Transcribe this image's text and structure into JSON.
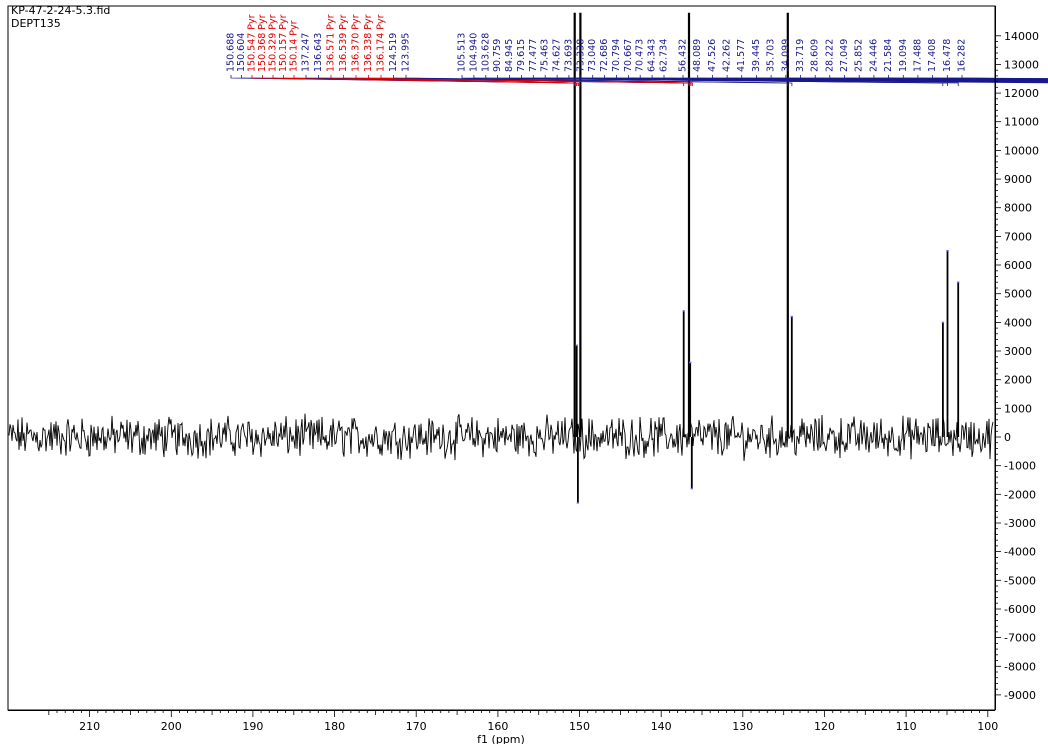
{
  "window": {
    "filename": "KP-47-2-24-5.3.fid",
    "experiment": "DEPT135"
  },
  "colors": {
    "spectrum": "#000000",
    "peak_label": "#1a1a8c",
    "solvent_label": "#e00000",
    "peak_tick": "#6a6aff"
  },
  "chart_data": {
    "type": "line",
    "title": "",
    "xlabel": "f1 (ppm)",
    "ylabel": "",
    "x_reversed": true,
    "xlim": [
      -17,
      220
    ],
    "ylim": [
      -9500,
      14800
    ],
    "x_ticks": [
      210,
      200,
      190,
      180,
      170,
      160,
      150,
      140,
      130,
      120,
      110,
      100,
      90,
      80,
      70,
      60,
      50,
      40,
      30,
      20,
      10,
      0,
      -10
    ],
    "y_ticks": [
      14000,
      13000,
      12000,
      11000,
      10000,
      9000,
      8000,
      7000,
      6000,
      5000,
      4000,
      3000,
      2000,
      1000,
      0,
      -1000,
      -2000,
      -3000,
      -4000,
      -5000,
      -6000,
      -7000,
      -8000,
      -9000
    ],
    "noise_amplitude": 850,
    "peaks": [
      {
        "x": 150.6,
        "y": 14800
      },
      {
        "x": 150.35,
        "y": 3200
      },
      {
        "x": 150.2,
        "y": -2300
      },
      {
        "x": 149.9,
        "y": 14800
      },
      {
        "x": 137.25,
        "y": 4400
      },
      {
        "x": 136.6,
        "y": 14800
      },
      {
        "x": 136.45,
        "y": 2600
      },
      {
        "x": 136.25,
        "y": -1800
      },
      {
        "x": 124.5,
        "y": 14800
      },
      {
        "x": 124.0,
        "y": 4200
      },
      {
        "x": 105.5,
        "y": 4000
      },
      {
        "x": 104.94,
        "y": 6500
      },
      {
        "x": 103.63,
        "y": 5400
      },
      {
        "x": 90.76,
        "y": 4500
      },
      {
        "x": 84.95,
        "y": 2800
      },
      {
        "x": 79.62,
        "y": 4700
      },
      {
        "x": 77.48,
        "y": 7500
      },
      {
        "x": 75.46,
        "y": 5700
      },
      {
        "x": 74.63,
        "y": 5500
      },
      {
        "x": 73.69,
        "y": 9600
      },
      {
        "x": 73.34,
        "y": 7300
      },
      {
        "x": 73.04,
        "y": 7400
      },
      {
        "x": 72.69,
        "y": 6000
      },
      {
        "x": 70.79,
        "y": 4300
      },
      {
        "x": 70.67,
        "y": 7000
      },
      {
        "x": 64.34,
        "y": -3300
      },
      {
        "x": 62.73,
        "y": -7000
      },
      {
        "x": 56.43,
        "y": 4900
      },
      {
        "x": 48.09,
        "y": -3800
      },
      {
        "x": 47.53,
        "y": 5000
      },
      {
        "x": 42.26,
        "y": -2700
      },
      {
        "x": 41.58,
        "y": 2900
      },
      {
        "x": 39.45,
        "y": -4000
      },
      {
        "x": 35.7,
        "y": -3400
      },
      {
        "x": 34.1,
        "y": 7900
      },
      {
        "x": 33.72,
        "y": -3300
      },
      {
        "x": 28.61,
        "y": 6000
      },
      {
        "x": 28.22,
        "y": 11200
      },
      {
        "x": 27.05,
        "y": -3100
      },
      {
        "x": 25.85,
        "y": 7300
      },
      {
        "x": 24.45,
        "y": -4200
      },
      {
        "x": 21.58,
        "y": 11900
      },
      {
        "x": 19.09,
        "y": 11500
      },
      {
        "x": 17.49,
        "y": 6200
      },
      {
        "x": 17.41,
        "y": 7500
      },
      {
        "x": 16.48,
        "y": 8000
      }
    ],
    "peak_labels": [
      {
        "text": "150.688",
        "x": 150.688,
        "color": "blue"
      },
      {
        "text": "150.604",
        "x": 150.604,
        "color": "blue"
      },
      {
        "text": "150.547 Pyr",
        "x": 150.547,
        "color": "red"
      },
      {
        "text": "150.368 Pyr",
        "x": 150.368,
        "color": "red"
      },
      {
        "text": "150.329 Pyr",
        "x": 150.329,
        "color": "red"
      },
      {
        "text": "150.157 Pyr",
        "x": 150.157,
        "color": "red"
      },
      {
        "text": "150.14 Pyr",
        "x": 150.14,
        "color": "red"
      },
      {
        "text": "137.247",
        "x": 137.247,
        "color": "blue"
      },
      {
        "text": "136.643",
        "x": 136.643,
        "color": "blue"
      },
      {
        "text": "136.571 Pyr",
        "x": 136.571,
        "color": "red"
      },
      {
        "text": "136.539 Pyr",
        "x": 136.539,
        "color": "red"
      },
      {
        "text": "136.370 Pyr",
        "x": 136.37,
        "color": "red"
      },
      {
        "text": "136.338 Pyr",
        "x": 136.338,
        "color": "red"
      },
      {
        "text": "136.174 Pyr",
        "x": 136.174,
        "color": "red"
      },
      {
        "text": "124.519",
        "x": 124.519,
        "color": "blue"
      },
      {
        "text": "123.995",
        "x": 123.995,
        "color": "blue"
      },
      {
        "text": "105.513",
        "x": 105.513,
        "color": "blue"
      },
      {
        "text": "104.940",
        "x": 104.94,
        "color": "blue"
      },
      {
        "text": "103.628",
        "x": 103.628,
        "color": "blue"
      },
      {
        "text": "90.759",
        "x": 90.759,
        "color": "blue"
      },
      {
        "text": "84.945",
        "x": 84.945,
        "color": "blue"
      },
      {
        "text": "79.615",
        "x": 79.615,
        "color": "blue"
      },
      {
        "text": "77.477",
        "x": 77.477,
        "color": "blue"
      },
      {
        "text": "75.463",
        "x": 75.463,
        "color": "blue"
      },
      {
        "text": "74.627",
        "x": 74.627,
        "color": "blue"
      },
      {
        "text": "73.693",
        "x": 73.693,
        "color": "blue"
      },
      {
        "text": "73.338",
        "x": 73.338,
        "color": "blue"
      },
      {
        "text": "73.040",
        "x": 73.04,
        "color": "blue"
      },
      {
        "text": "72.686",
        "x": 72.686,
        "color": "blue"
      },
      {
        "text": "70.794",
        "x": 70.794,
        "color": "blue"
      },
      {
        "text": "70.667",
        "x": 70.667,
        "color": "blue"
      },
      {
        "text": "70.473",
        "x": 70.473,
        "color": "blue"
      },
      {
        "text": "64.343",
        "x": 64.343,
        "color": "blue"
      },
      {
        "text": "62.734",
        "x": 62.734,
        "color": "blue"
      },
      {
        "text": "56.432",
        "x": 56.432,
        "color": "blue"
      },
      {
        "text": "48.089",
        "x": 48.089,
        "color": "blue"
      },
      {
        "text": "47.526",
        "x": 47.526,
        "color": "blue"
      },
      {
        "text": "42.262",
        "x": 42.262,
        "color": "blue"
      },
      {
        "text": "41.577",
        "x": 41.577,
        "color": "blue"
      },
      {
        "text": "39.445",
        "x": 39.445,
        "color": "blue"
      },
      {
        "text": "35.703",
        "x": 35.703,
        "color": "blue"
      },
      {
        "text": "34.099",
        "x": 34.099,
        "color": "blue"
      },
      {
        "text": "33.719",
        "x": 33.719,
        "color": "blue"
      },
      {
        "text": "28.609",
        "x": 28.609,
        "color": "blue"
      },
      {
        "text": "28.222",
        "x": 28.222,
        "color": "blue"
      },
      {
        "text": "27.049",
        "x": 27.049,
        "color": "blue"
      },
      {
        "text": "25.852",
        "x": 25.852,
        "color": "blue"
      },
      {
        "text": "24.446",
        "x": 24.446,
        "color": "blue"
      },
      {
        "text": "21.584",
        "x": 21.584,
        "color": "blue"
      },
      {
        "text": "19.094",
        "x": 19.094,
        "color": "blue"
      },
      {
        "text": "17.488",
        "x": 17.488,
        "color": "blue"
      },
      {
        "text": "17.408",
        "x": 17.408,
        "color": "blue"
      },
      {
        "text": "16.478",
        "x": 16.478,
        "color": "blue"
      },
      {
        "text": "16.282",
        "x": 16.282,
        "color": "blue"
      }
    ]
  }
}
